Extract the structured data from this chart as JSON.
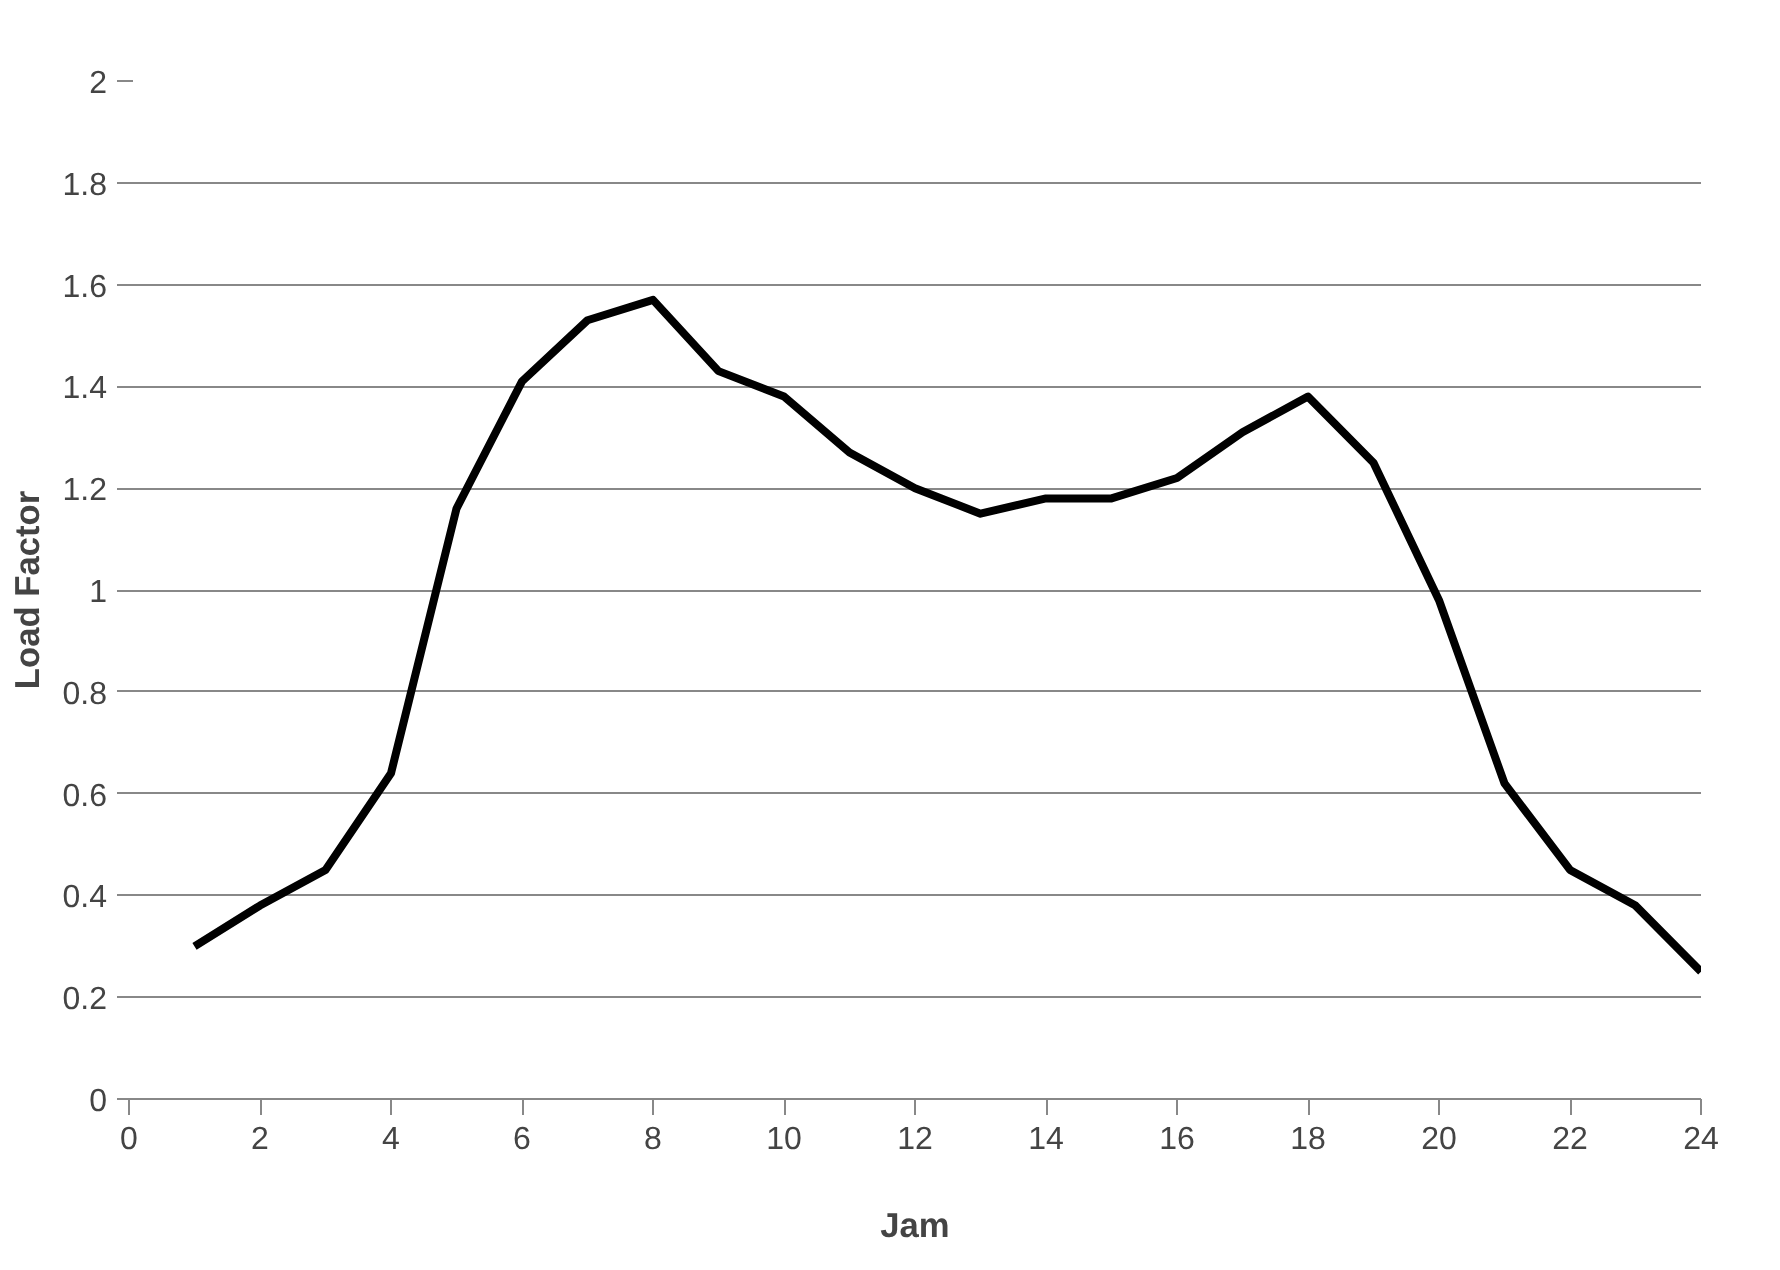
{
  "chart_data": {
    "type": "line",
    "xlabel": "Jam",
    "ylabel": "Load Factor",
    "x": [
      1,
      2,
      3,
      4,
      5,
      6,
      7,
      8,
      9,
      10,
      11,
      12,
      13,
      14,
      15,
      16,
      17,
      18,
      19,
      20,
      21,
      22,
      23,
      24
    ],
    "series": [
      {
        "color": "#000000",
        "values": [
          0.3,
          0.38,
          0.45,
          0.64,
          1.16,
          1.41,
          1.53,
          1.57,
          1.43,
          1.38,
          1.27,
          1.2,
          1.15,
          1.18,
          1.18,
          1.22,
          1.31,
          1.38,
          1.25,
          0.98,
          0.62,
          0.45,
          0.38,
          0.25
        ]
      }
    ],
    "xlim": [
      0,
      24
    ],
    "xticks": [
      0,
      2,
      4,
      6,
      8,
      10,
      12,
      14,
      16,
      18,
      20,
      22,
      24
    ],
    "ylim": [
      0,
      2
    ],
    "yticks": [
      0,
      0.2,
      0.4,
      0.6,
      0.8,
      1,
      1.2,
      1.4,
      1.6,
      1.8,
      2
    ],
    "grid": "y",
    "marker": "none",
    "line_style": "solid"
  }
}
